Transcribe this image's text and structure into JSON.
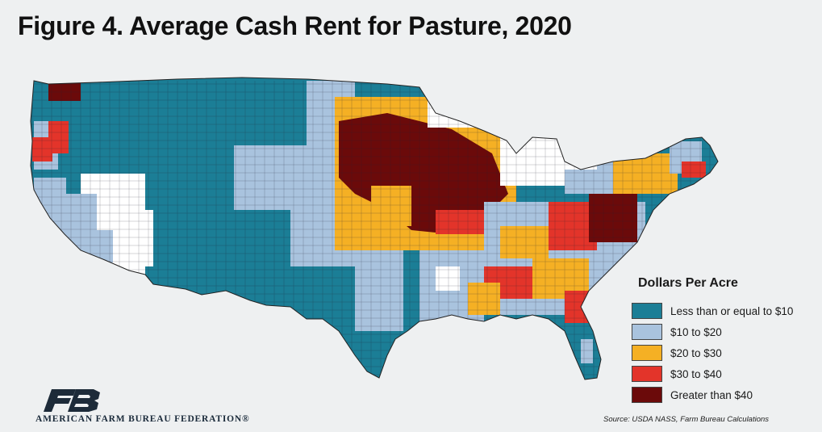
{
  "title": "Figure 4. Average Cash Rent for Pasture, 2020",
  "legend": {
    "title": "Dollars Per Acre",
    "items": [
      {
        "label": "Less than or equal to $10",
        "color": "#1b7e96"
      },
      {
        "label": "$10 to $20",
        "color": "#a9c3de"
      },
      {
        "label": "$20 to $30",
        "color": "#f5b024"
      },
      {
        "label": "$30 to $40",
        "color": "#e3342a"
      },
      {
        "label": "Greater than $40",
        "color": "#6b0a0a"
      }
    ]
  },
  "colors": {
    "le10": "#1b7e96",
    "r10_20": "#a9c3de",
    "r20_30": "#f5b024",
    "r30_40": "#e3342a",
    "gt40": "#6b0a0a",
    "nodata": "#ffffff",
    "logo": "#1d2b39"
  },
  "footer": {
    "org": "AMERICAN FARM BUREAU FEDERATION®",
    "source": "Source: USDA NASS, Farm Bureau Calculations"
  }
}
